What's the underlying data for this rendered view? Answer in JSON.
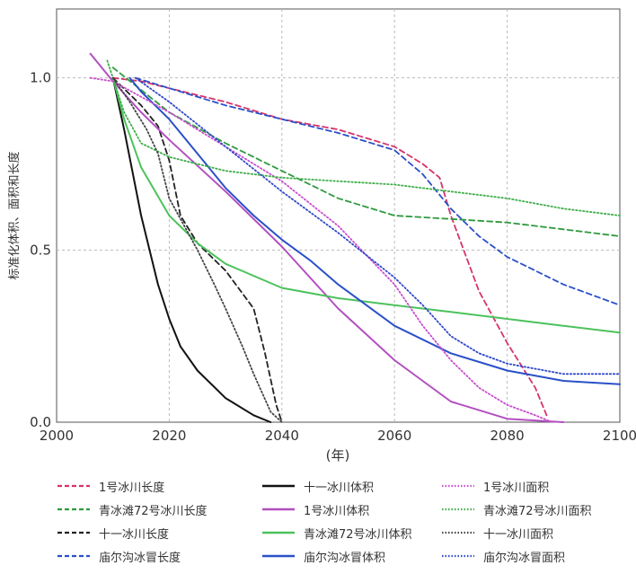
{
  "chart_data": {
    "type": "line",
    "title": "",
    "xlabel": "(年)",
    "ylabel": "标准化体积、面积和长度",
    "xlim": [
      2000,
      2100
    ],
    "ylim": [
      0.0,
      1.2
    ],
    "xticks": [
      2000,
      2020,
      2040,
      2060,
      2080,
      2100
    ],
    "yticks": [
      0.0,
      0.5,
      1.0
    ],
    "ytick_labels": [
      "0.0",
      "0.5",
      "1.0"
    ],
    "grid": true,
    "legend_position": "bottom",
    "series": [
      {
        "name": "1号冰川长度",
        "color": "#d6336c",
        "style": "dashed",
        "x": [
          2010,
          2015,
          2020,
          2030,
          2040,
          2050,
          2060,
          2065,
          2068,
          2070,
          2075,
          2080,
          2085,
          2087
        ],
        "y": [
          1.0,
          0.99,
          0.97,
          0.93,
          0.88,
          0.85,
          0.8,
          0.75,
          0.71,
          0.6,
          0.38,
          0.23,
          0.1,
          0.02
        ]
      },
      {
        "name": "青冰滩72号冰川长度",
        "color": "#2e9a3e",
        "style": "dashed",
        "x": [
          2010,
          2020,
          2030,
          2040,
          2050,
          2060,
          2070,
          2080,
          2090,
          2100
        ],
        "y": [
          1.03,
          0.9,
          0.81,
          0.73,
          0.65,
          0.6,
          0.59,
          0.58,
          0.56,
          0.54
        ]
      },
      {
        "name": "十一冰川长度",
        "color": "#222222",
        "style": "dashed",
        "x": [
          2010,
          2015,
          2018,
          2020,
          2022,
          2025,
          2030,
          2035,
          2037,
          2039,
          2040
        ],
        "y": [
          1.0,
          0.92,
          0.86,
          0.76,
          0.6,
          0.52,
          0.44,
          0.33,
          0.2,
          0.05,
          0.0
        ]
      },
      {
        "name": "庙尔沟冰冒长度",
        "color": "#2a50c8",
        "style": "dashed",
        "x": [
          2014,
          2020,
          2030,
          2040,
          2050,
          2060,
          2065,
          2070,
          2075,
          2080,
          2090,
          2100
        ],
        "y": [
          1.0,
          0.97,
          0.92,
          0.88,
          0.84,
          0.79,
          0.72,
          0.62,
          0.54,
          0.48,
          0.4,
          0.34
        ]
      },
      {
        "name": "十一冰川体积",
        "color": "#111111",
        "style": "solid",
        "x": [
          2010,
          2012,
          2015,
          2018,
          2020,
          2022,
          2025,
          2030,
          2035,
          2038
        ],
        "y": [
          1.0,
          0.85,
          0.6,
          0.4,
          0.3,
          0.22,
          0.15,
          0.07,
          0.02,
          0.0
        ]
      },
      {
        "name": "1号冰川体积",
        "color": "#b24fc0",
        "style": "solid",
        "x": [
          2006,
          2010,
          2015,
          2020,
          2030,
          2040,
          2050,
          2060,
          2070,
          2080,
          2090
        ],
        "y": [
          1.07,
          0.99,
          0.9,
          0.82,
          0.67,
          0.51,
          0.33,
          0.18,
          0.06,
          0.01,
          0.0
        ]
      },
      {
        "name": "青冰滩72号冰川体积",
        "color": "#4cc25c",
        "style": "solid",
        "x": [
          2010,
          2012,
          2015,
          2020,
          2025,
          2030,
          2040,
          2050,
          2060,
          2070,
          2080,
          2090,
          2100
        ],
        "y": [
          1.0,
          0.88,
          0.74,
          0.6,
          0.52,
          0.46,
          0.39,
          0.36,
          0.34,
          0.32,
          0.3,
          0.28,
          0.26
        ]
      },
      {
        "name": "庙尔沟冰冒体积",
        "color": "#2a50c8",
        "style": "solid",
        "x": [
          2013,
          2015,
          2020,
          2025,
          2030,
          2035,
          2040,
          2045,
          2050,
          2060,
          2070,
          2080,
          2090,
          2100
        ],
        "y": [
          1.0,
          0.96,
          0.88,
          0.78,
          0.68,
          0.6,
          0.53,
          0.47,
          0.4,
          0.28,
          0.2,
          0.15,
          0.12,
          0.11
        ]
      },
      {
        "name": "1号冰川面积",
        "color": "#c94fcf",
        "style": "dotted",
        "x": [
          2006,
          2010,
          2020,
          2030,
          2040,
          2050,
          2060,
          2065,
          2070,
          2075,
          2080,
          2085,
          2088
        ],
        "y": [
          1.0,
          0.99,
          0.9,
          0.8,
          0.7,
          0.57,
          0.4,
          0.28,
          0.18,
          0.1,
          0.05,
          0.02,
          0.0
        ]
      },
      {
        "name": "青冰滩72号冰川面积",
        "color": "#3fae4a",
        "style": "dotted",
        "x": [
          2009,
          2012,
          2015,
          2020,
          2030,
          2040,
          2050,
          2060,
          2070,
          2080,
          2090,
          2100
        ],
        "y": [
          1.05,
          0.9,
          0.81,
          0.77,
          0.73,
          0.71,
          0.7,
          0.69,
          0.67,
          0.65,
          0.62,
          0.6
        ]
      },
      {
        "name": "十一冰川面积",
        "color": "#444444",
        "style": "dotted",
        "x": [
          2010,
          2013,
          2016,
          2018,
          2020,
          2025,
          2028,
          2030,
          2033,
          2035,
          2038,
          2040
        ],
        "y": [
          1.0,
          0.93,
          0.85,
          0.78,
          0.65,
          0.5,
          0.4,
          0.33,
          0.22,
          0.14,
          0.03,
          0.0
        ]
      },
      {
        "name": "庙尔沟冰冒面积",
        "color": "#3048c8",
        "style": "dotted",
        "x": [
          2014,
          2020,
          2030,
          2040,
          2050,
          2060,
          2065,
          2070,
          2075,
          2080,
          2090,
          2100
        ],
        "y": [
          1.0,
          0.93,
          0.8,
          0.67,
          0.55,
          0.42,
          0.34,
          0.25,
          0.2,
          0.17,
          0.14,
          0.14
        ]
      }
    ]
  },
  "legend": {
    "items": [
      {
        "label": "1号冰川长度",
        "color": "#d6336c",
        "style": "dashed"
      },
      {
        "label": "十一冰川体积",
        "color": "#111111",
        "style": "solid"
      },
      {
        "label": "1号冰川面积",
        "color": "#c94fcf",
        "style": "dotted"
      },
      {
        "label": "青冰滩72号冰川长度",
        "color": "#2e9a3e",
        "style": "dashed"
      },
      {
        "label": "1号冰川体积",
        "color": "#b24fc0",
        "style": "solid"
      },
      {
        "label": "青冰滩72号冰川面积",
        "color": "#3fae4a",
        "style": "dotted"
      },
      {
        "label": "十一冰川长度",
        "color": "#222222",
        "style": "dashed"
      },
      {
        "label": "青冰滩72号冰川体积",
        "color": "#4cc25c",
        "style": "solid"
      },
      {
        "label": "十一冰川面积",
        "color": "#444444",
        "style": "dotted"
      },
      {
        "label": "庙尔沟冰冒长度",
        "color": "#2a50c8",
        "style": "dashed"
      },
      {
        "label": "庙尔沟冰冒体积",
        "color": "#2a50c8",
        "style": "solid"
      },
      {
        "label": "庙尔沟冰冒面积",
        "color": "#3048c8",
        "style": "dotted"
      }
    ]
  }
}
